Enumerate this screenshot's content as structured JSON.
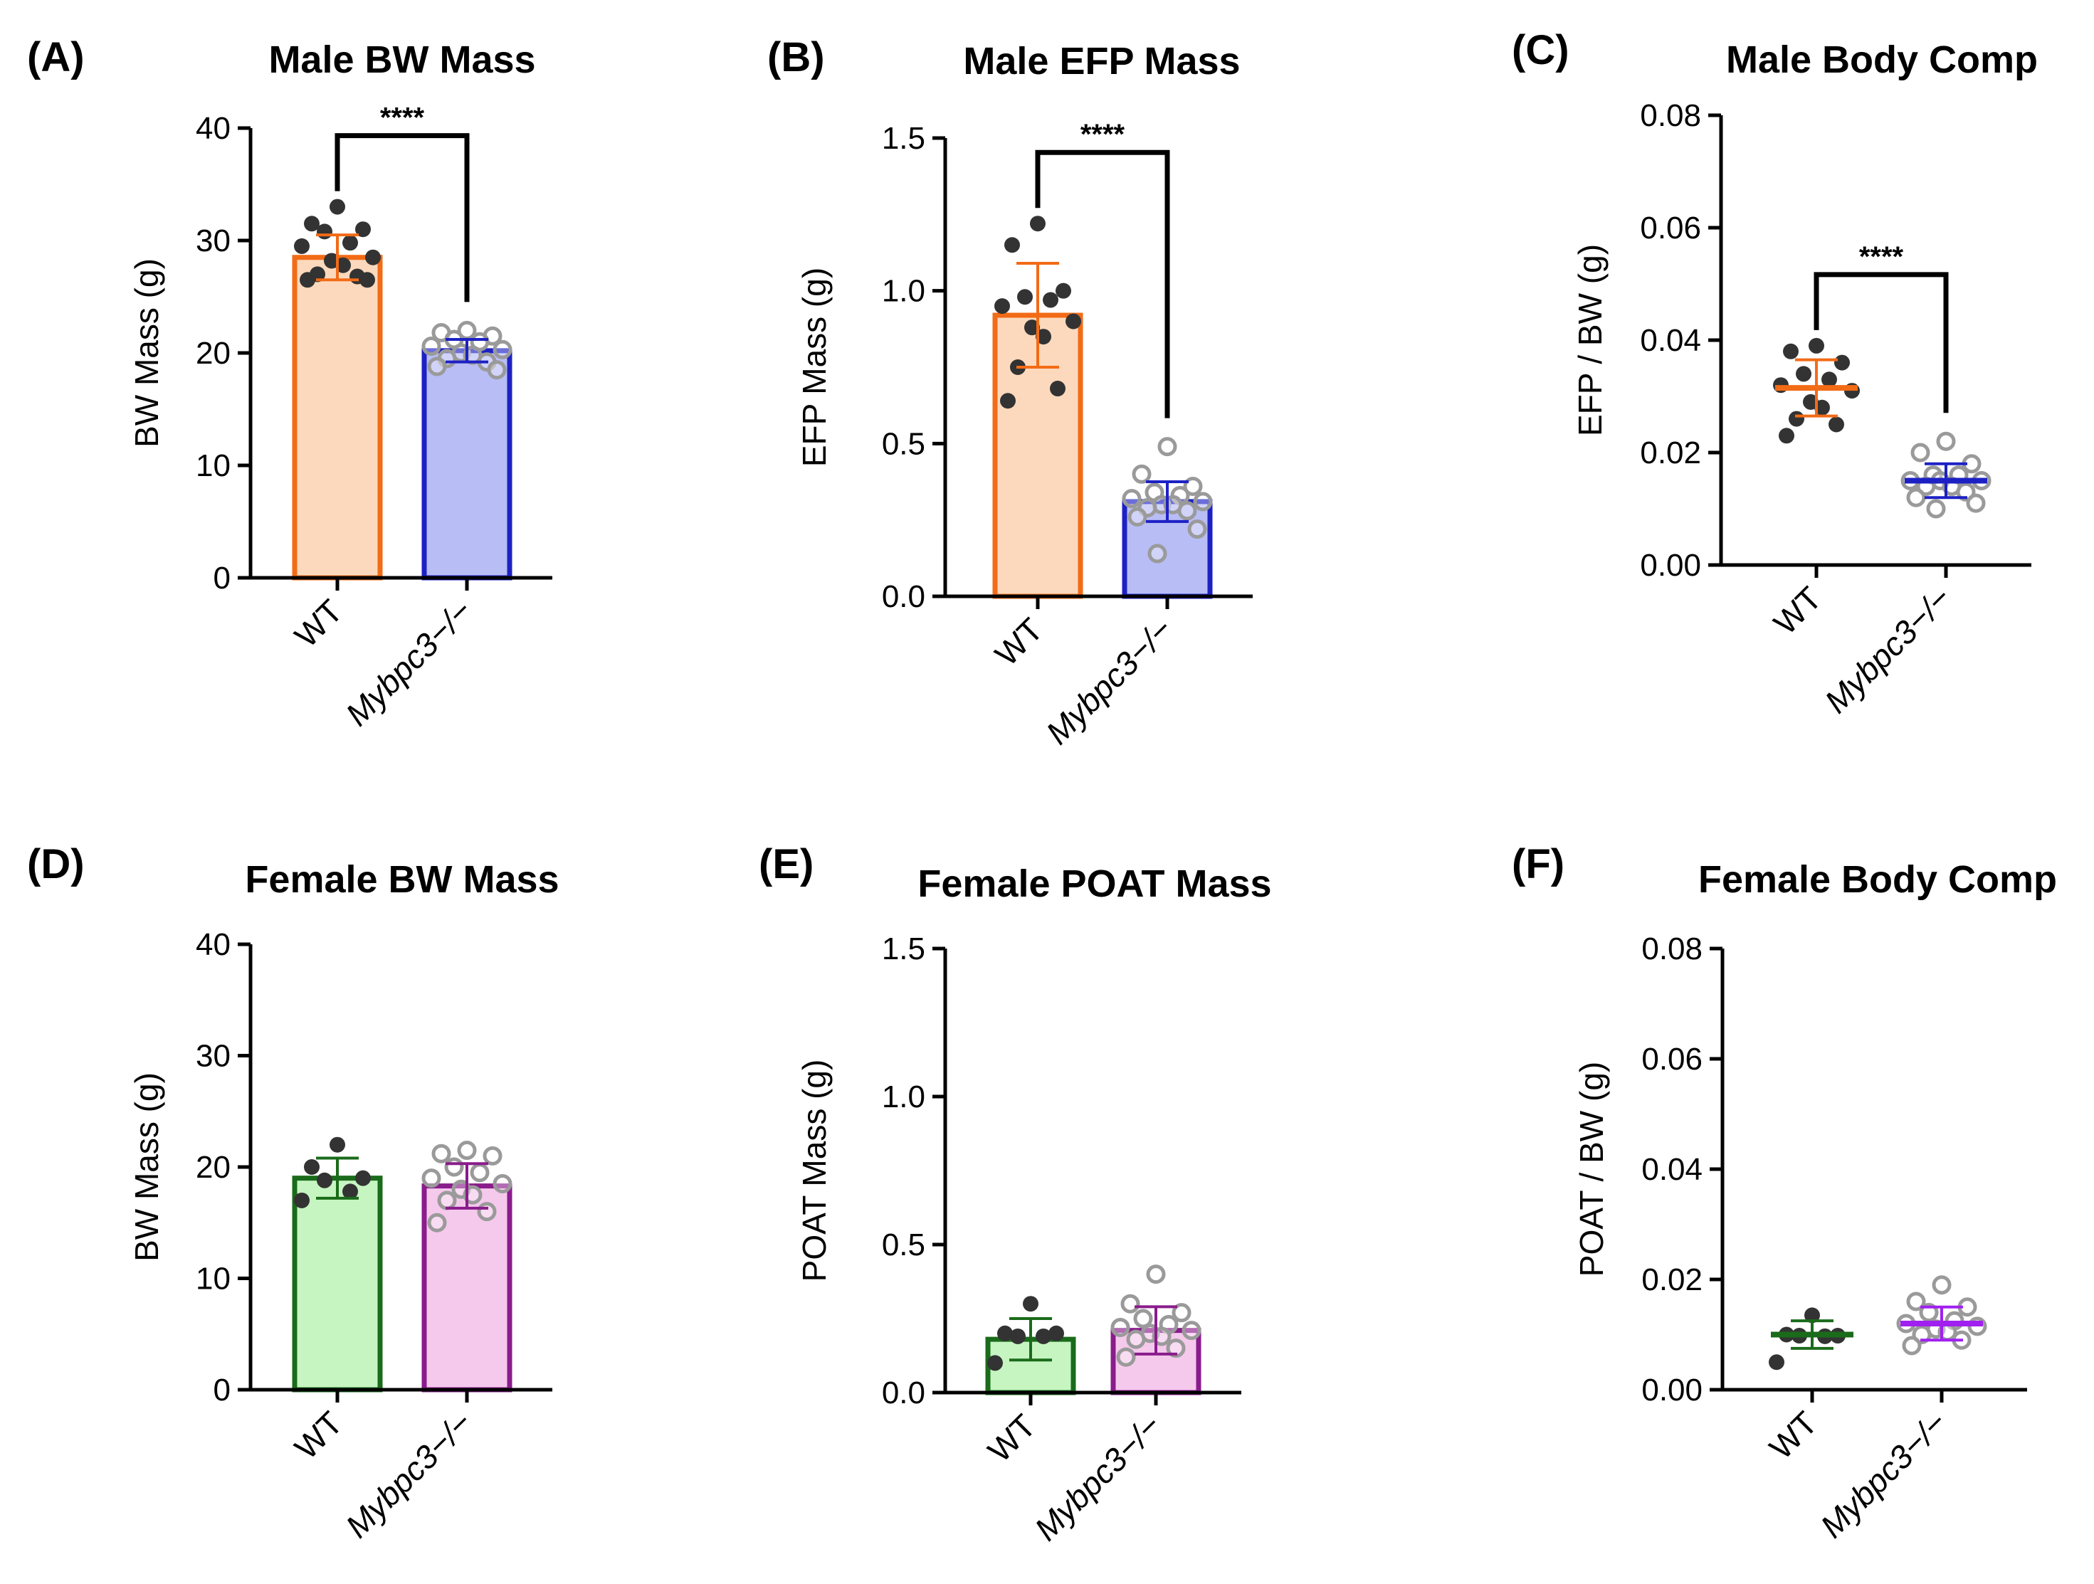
{
  "chart_data": [
    {
      "type": "bar",
      "panel": "(A)",
      "title": "Male BW Mass",
      "ylabel": "BW Mass (g)",
      "xlabel": "",
      "ylim": [
        0,
        40
      ],
      "yticks": [
        "0",
        "10",
        "20",
        "30",
        "40"
      ],
      "categories": [
        "WT",
        "Mybpc3−/−"
      ],
      "significance": "****",
      "series": [
        {
          "name": "WT",
          "mean": 28.5,
          "sd": 2.0,
          "color": "#f26b16",
          "fill": "#fcd9bd",
          "point_style": "filled",
          "points": [
            33.0,
            31.5,
            31.0,
            30.8,
            29.8,
            29.5,
            28.5,
            28.2,
            27.8,
            27.0,
            26.8,
            26.5,
            26.5
          ]
        },
        {
          "name": "Mybpc3−/−",
          "mean": 20.2,
          "sd": 1.0,
          "color": "#1d21c4",
          "fill": "#b8bdf5",
          "point_style": "open",
          "points": [
            22.0,
            21.8,
            21.5,
            21.2,
            21.0,
            20.6,
            20.3,
            20.0,
            19.8,
            19.5,
            19.2,
            18.8,
            18.5
          ]
        }
      ]
    },
    {
      "type": "bar",
      "panel": "(B)",
      "title": "Male EFP Mass",
      "ylabel": "EFP Mass (g)",
      "xlabel": "",
      "ylim": [
        0,
        1.5
      ],
      "yticks": [
        "0.0",
        "0.5",
        "1.0",
        "1.5"
      ],
      "categories": [
        "WT",
        "Mybpc3−/−"
      ],
      "significance": "****",
      "series": [
        {
          "name": "WT",
          "mean": 0.92,
          "sd": 0.17,
          "color": "#f26b16",
          "fill": "#fcd9bd",
          "point_style": "filled",
          "points": [
            1.22,
            1.15,
            1.0,
            0.98,
            0.97,
            0.95,
            0.9,
            0.88,
            0.85,
            0.75,
            0.68,
            0.64
          ]
        },
        {
          "name": "Mybpc3−/−",
          "mean": 0.31,
          "sd": 0.065,
          "color": "#1d21c4",
          "fill": "#b8bdf5",
          "point_style": "open",
          "points": [
            0.49,
            0.4,
            0.36,
            0.34,
            0.33,
            0.32,
            0.31,
            0.3,
            0.3,
            0.29,
            0.28,
            0.26,
            0.22,
            0.14
          ]
        }
      ]
    },
    {
      "type": "scatter",
      "panel": "(C)",
      "title": "Male Body Comp",
      "ylabel": "EFP / BW (g)",
      "xlabel": "",
      "ylim": [
        0,
        0.08
      ],
      "yticks": [
        "0.00",
        "0.02",
        "0.04",
        "0.06",
        "0.08"
      ],
      "categories": [
        "WT",
        "Mybpc3−/−"
      ],
      "significance": "****",
      "series": [
        {
          "name": "WT",
          "mean": 0.0315,
          "sd": 0.005,
          "color": "#f26b16",
          "point_style": "filled",
          "points": [
            0.039,
            0.038,
            0.036,
            0.034,
            0.033,
            0.032,
            0.031,
            0.029,
            0.028,
            0.026,
            0.025,
            0.023
          ]
        },
        {
          "name": "Mybpc3−/−",
          "mean": 0.015,
          "sd": 0.003,
          "color": "#1d21c4",
          "point_style": "open",
          "points": [
            0.022,
            0.02,
            0.018,
            0.016,
            0.016,
            0.015,
            0.015,
            0.015,
            0.014,
            0.014,
            0.013,
            0.012,
            0.011,
            0.01
          ]
        }
      ]
    },
    {
      "type": "bar",
      "panel": "(D)",
      "title": "Female BW Mass",
      "ylabel": "BW Mass (g)",
      "xlabel": "",
      "ylim": [
        0,
        40
      ],
      "yticks": [
        "0",
        "10",
        "20",
        "30",
        "40"
      ],
      "categories": [
        "WT",
        "Mybpc3−/−"
      ],
      "significance": "",
      "series": [
        {
          "name": "WT",
          "mean": 19.0,
          "sd": 1.8,
          "color": "#1a6b1a",
          "fill": "#c6f5c2",
          "point_style": "filled",
          "points": [
            22.0,
            20.0,
            19.0,
            18.8,
            17.8,
            17.0
          ]
        },
        {
          "name": "Mybpc3−/−",
          "mean": 18.3,
          "sd": 2.0,
          "color": "#8a1c8c",
          "fill": "#f5c9ec",
          "point_style": "open",
          "points": [
            21.5,
            21.2,
            21.0,
            20.0,
            19.5,
            19.0,
            18.5,
            18.0,
            17.5,
            17.0,
            16.0,
            15.0
          ]
        }
      ]
    },
    {
      "type": "bar",
      "panel": "(E)",
      "title": "Female POAT Mass",
      "ylabel": "POAT Mass (g)",
      "xlabel": "",
      "ylim": [
        0,
        1.5
      ],
      "yticks": [
        "0.0",
        "0.5",
        "1.0",
        "1.5"
      ],
      "categories": [
        "WT",
        "Mybpc3−/−"
      ],
      "significance": "",
      "series": [
        {
          "name": "WT",
          "mean": 0.18,
          "sd": 0.07,
          "color": "#1a6b1a",
          "fill": "#c6f5c2",
          "point_style": "filled",
          "points": [
            0.3,
            0.2,
            0.2,
            0.19,
            0.19,
            0.1
          ]
        },
        {
          "name": "Mybpc3−/−",
          "mean": 0.21,
          "sd": 0.08,
          "color": "#8a1c8c",
          "fill": "#f5c9ec",
          "point_style": "open",
          "points": [
            0.4,
            0.3,
            0.27,
            0.25,
            0.23,
            0.22,
            0.21,
            0.2,
            0.19,
            0.18,
            0.15,
            0.12
          ]
        }
      ]
    },
    {
      "type": "scatter",
      "panel": "(F)",
      "title": "Female Body Comp",
      "ylabel": "POAT / BW (g)",
      "xlabel": "",
      "ylim": [
        0,
        0.08
      ],
      "yticks": [
        "0.00",
        "0.02",
        "0.04",
        "0.06",
        "0.08"
      ],
      "categories": [
        "WT",
        "Mybpc3−/−"
      ],
      "significance": "",
      "series": [
        {
          "name": "WT",
          "mean": 0.01,
          "sd": 0.0025,
          "color": "#1a6b1a",
          "point_style": "filled",
          "points": [
            0.0135,
            0.01,
            0.0098,
            0.0098,
            0.0097,
            0.005
          ]
        },
        {
          "name": "Mybpc3−/−",
          "mean": 0.012,
          "sd": 0.003,
          "color": "#a020f0",
          "point_style": "open",
          "points": [
            0.019,
            0.016,
            0.015,
            0.014,
            0.0125,
            0.012,
            0.0115,
            0.011,
            0.0105,
            0.01,
            0.009,
            0.008
          ]
        }
      ]
    }
  ]
}
